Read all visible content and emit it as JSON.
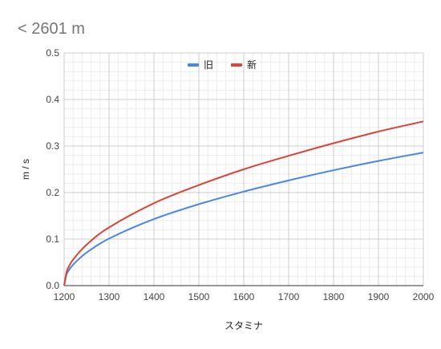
{
  "chart_data": {
    "type": "line",
    "title": "< 2601 m",
    "xlabel": "スタミナ",
    "ylabel": "m / s",
    "xlim": [
      1200,
      2000
    ],
    "ylim": [
      0,
      0.5
    ],
    "x_ticks": [
      "1200",
      "1300",
      "1400",
      "1500",
      "1600",
      "1700",
      "1800",
      "1900",
      "2000"
    ],
    "y_ticks": [
      "0.0",
      "0.1",
      "0.2",
      "0.3",
      "0.4",
      "0.5"
    ],
    "grid": true,
    "legend": "top-center",
    "series": [
      {
        "name": "旧",
        "color": "#4a86e8",
        "x": [
          1200,
          1205,
          1210,
          1220,
          1250,
          1300,
          1400,
          1500,
          1600,
          1700,
          1800,
          1900,
          2000
        ],
        "y": [
          0.0,
          0.023,
          0.032,
          0.045,
          0.071,
          0.101,
          0.143,
          0.175,
          0.202,
          0.226,
          0.248,
          0.268,
          0.286
        ]
      },
      {
        "name": "新",
        "color": "#db4437",
        "x": [
          1200,
          1205,
          1210,
          1220,
          1250,
          1300,
          1400,
          1500,
          1600,
          1700,
          1800,
          1900,
          2000
        ],
        "y": [
          0.0,
          0.028,
          0.04,
          0.056,
          0.088,
          0.125,
          0.177,
          0.216,
          0.25,
          0.279,
          0.306,
          0.331,
          0.353
        ]
      }
    ]
  }
}
